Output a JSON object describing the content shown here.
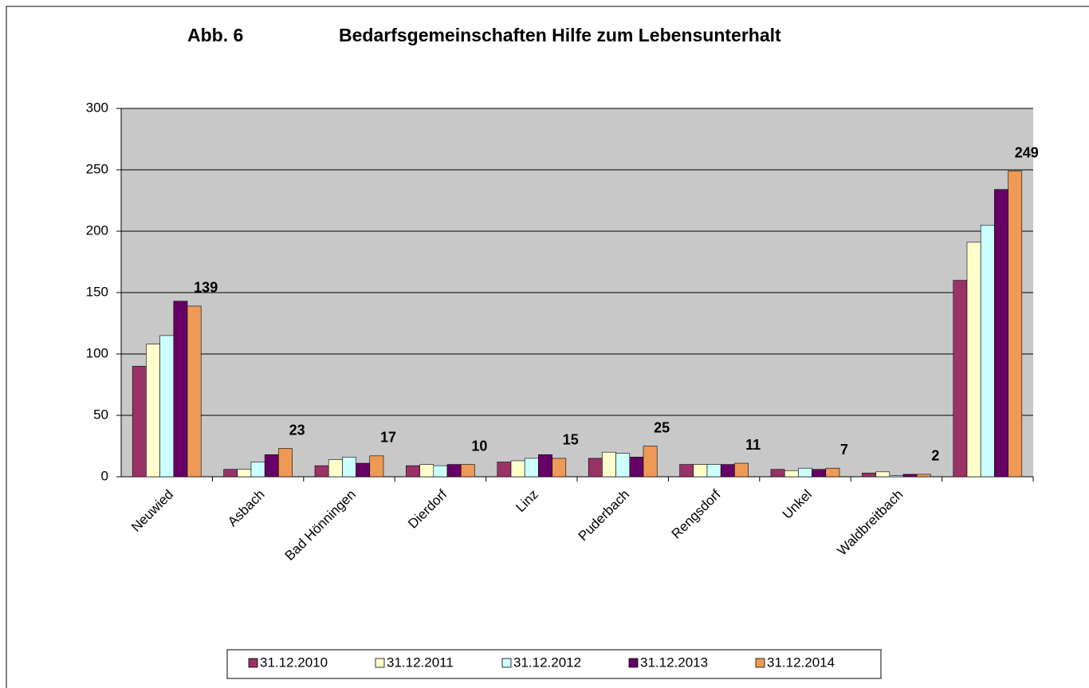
{
  "chart_data": {
    "type": "bar",
    "figure_label": "Abb. 6",
    "title": "Bedarfsgemeinschaften Hilfe zum Lebensunterhalt",
    "categories": [
      "Neuwied",
      "Asbach",
      "Bad Hönningen",
      "Dierdorf",
      "Linz",
      "Puderbach",
      "Rengsdorf",
      "Unkel",
      "Waldbreitbach",
      null
    ],
    "series": [
      {
        "name": "31.12.2010",
        "color": "#993366",
        "values": [
          90,
          6,
          9,
          9,
          12,
          15,
          10,
          6,
          3,
          160
        ]
      },
      {
        "name": "31.12.2011",
        "color": "#ffffcc",
        "values": [
          108,
          6,
          14,
          10,
          13,
          20,
          10,
          5,
          4,
          191
        ]
      },
      {
        "name": "31.12.2012",
        "color": "#ccffff",
        "values": [
          115,
          12,
          16,
          9,
          15,
          19,
          10,
          7,
          1,
          205
        ]
      },
      {
        "name": "31.12.2013",
        "color": "#660066",
        "values": [
          143,
          18,
          11,
          10,
          18,
          16,
          10,
          6,
          2,
          234
        ]
      },
      {
        "name": "31.12.2014",
        "color": "#ee9955",
        "values": [
          139,
          23,
          17,
          10,
          15,
          25,
          11,
          7,
          2,
          249
        ],
        "show_labels": true
      }
    ],
    "ylim": [
      0,
      300
    ],
    "yticks": [
      0,
      50,
      100,
      150,
      200,
      250,
      300
    ],
    "grid": true,
    "legend": "bottom"
  }
}
